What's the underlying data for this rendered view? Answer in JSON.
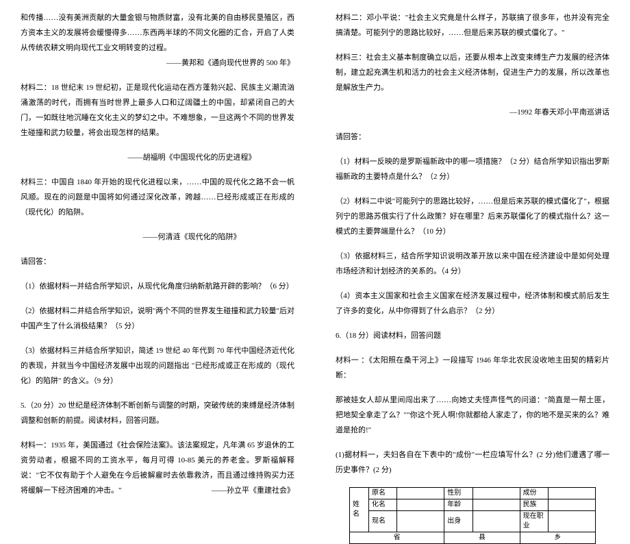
{
  "left": {
    "p1": "和传播……没有美洲贡献的大量金银与物质财富，没有北美的自由移民垦殖区，西方资本主义的发展将会缓慢得多……东西两半球的不同文化圈的汇合，开启了人类从传统农耕文明向现代工业文明转变的过程。",
    "p1_source": "——黄邦和《通向现代世界的 500 年》",
    "p2": "材料二：18 世纪末 19 世纪初，正是现代化运动在西方蓬勃兴起、民族主义潮流汹涌激荡的时代，而拥有当时世界上最多人口和辽阔疆土的中国，却紧闭自己的大门，一如既往地沉睡在文化主义的梦幻之中。不难想象，一旦这两个不同的世界发生碰撞和武力较量，将会出现怎样的结果。",
    "p2_source": "——胡福明《中国现代化的历史进程》",
    "p3": "材料三：中国自 1840 年开始的现代化进程以来，……中国的现代化之路不会一帆风顺。现在的问题是中国将如何通过深化改革，跨越……已经形成或正在形成的（现代化）的陷阱。",
    "p3_source": "——何清涟《现代化的陷阱》",
    "ask_label": "请回答：",
    "q1": "（1）依据材料一并结合所学知识，从现代化角度归纳新航路开辟的影响？（6 分）",
    "q2": "（2）依据材料二并结合所学知识，说明\"两个不同的世界发生碰撞和武力较量\"后对中国产生了什么消极结果？（5 分）",
    "q3": "（3）依据材料三并结合所学知识，简述 19 世纪 40 年代到 70 年代中国经济近代化的表现，并就当今中国经济发展中出现的问题指出 \"已经形成或正在形成的（现代化）的陷阱\" 的含义。（9 分）",
    "q5_head": "5.（20 分）20 世纪是经济体制不断创新与调整的时期，突破传统的束缚是经济体制调整和创新的前提。阅读材料，回答问题。",
    "m1": "材料一：1935 年，美国通过《社会保险法案》。该法案规定，凡年满 65 岁退休的工资劳动者，根据不同的工资水平，每月可得 10-85 美元的养老金。罗斯福解释说：\"它不仅有助于个人避免在今后被解雇时去依靠救济，而且通过维持购买力还将缓解一下经济困难的冲击。\"",
    "m1_source": "——孙立平《重建社会》"
  },
  "right": {
    "m2": "材料二：邓小平说：\"社会主义究竟是什么样子，苏联搞了很多年，也并没有完全搞清楚。可能列宁的思路比较好，……但是后来苏联的模式僵化了。\"",
    "m3": "材料三：社会主义基本制度确立以后，还要从根本上改变束缚生产力发展的经济体制，建立起充满生机和活力的社会主义经济体制，促进生产力的发展，所以改革也是解放生产力。",
    "m3_source": "—1992 年春天邓小平南巡讲话",
    "ask_label": "请回答：",
    "q1": "（1）材料一反映的是罗斯福新政中的哪一项措施？（2 分）结合所学知识指出罗斯福新政的主要特点是什么？（2 分）",
    "q2": "（2）材料二中说\"可能列宁的思路比较好，……但是后来苏联的模式僵化了\"，根据列宁的思路苏俄实行了什么政策？好在哪里？后来苏联僵化了的模式指什么？这一模式的主要弊端是什么？（10 分）",
    "q3": "（3）依据材料三，结合所学知识说明改革开放以来中国在经济建设中是如何处理市场经济和计划经济的关系的。（4 分）",
    "q4": "（4）资本主义国家和社会主义国家在经济发展过程中，经济体制和模式前后发生了许多的变化，从中你得到了什么启示？（2 分）",
    "q6_head": "6.（18 分）阅读材料，回答问题",
    "m1_6": "材料一 ：《太阳照在桑干河上》一段描写 1946 年华北农民没收地主田契的精彩片断：",
    "m1_6b": "那被娃女人却从里间闯出来了……向她丈夫怪声怪气的问道：\"简直是一帮土匪，把地契全拿走了么？\"\"你这个死人啊!你就都给人家走了，你的地不是买来的么？难道是抢的!\"",
    "q6_1": "(1)据材料一，夫妇各自在下表中的\"成份\"一栏应填写什么？(2 分)他们遭遇了哪一历史事件？(2 分)",
    "table": {
      "side_label": "姓名",
      "rows": [
        [
          "原名",
          "",
          "性别",
          "",
          "成份",
          ""
        ],
        [
          "化名",
          "",
          "年龄",
          "",
          "民族",
          ""
        ],
        [
          "现名",
          "",
          "出身",
          "",
          "现在职业",
          ""
        ]
      ],
      "addr_label": "省",
      "addr_mid": "县",
      "addr_end": "乡"
    }
  }
}
